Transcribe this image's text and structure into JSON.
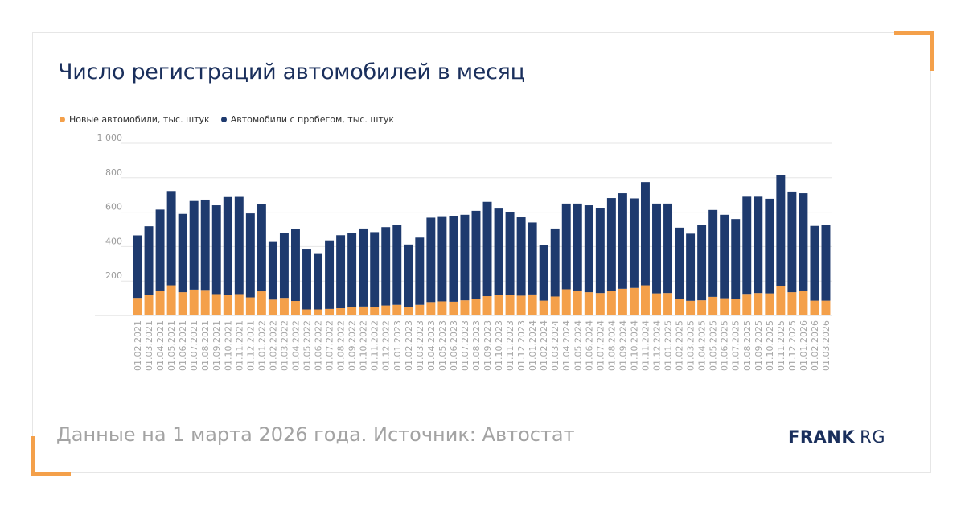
{
  "colors": {
    "new_cars": "#f4a04a",
    "used_cars": "#1e3a6e",
    "accent": "#f4a04a",
    "brand": "#1a2f5c"
  },
  "page": {
    "title": "Число регистраций автомобилей в месяц",
    "footer_note": "Данные на 1 марта 2026 года. Источник: Автостат",
    "brand_bold": "FRANK",
    "brand_light": "RG"
  },
  "chart_data": {
    "type": "bar",
    "stacked": true,
    "title": "Число регистраций автомобилей в месяц",
    "xlabel": "",
    "ylabel": "",
    "ylim": [
      0,
      1000
    ],
    "yticks": [
      200,
      400,
      600,
      800,
      1000
    ],
    "ytick_labels": [
      "200",
      "400",
      "600",
      "800",
      "1 000"
    ],
    "grid": true,
    "legend_position": "top-left",
    "categories": [
      "01.02.2021",
      "01.03.2021",
      "01.04.2021",
      "01.05.2021",
      "01.06.2021",
      "01.07.2021",
      "01.08.2021",
      "01.09.2021",
      "01.10.2021",
      "01.11.2021",
      "01.12.2021",
      "01.01.2022",
      "01.02.2022",
      "01.03.2022",
      "01.04.2022",
      "01.05.2022",
      "01.06.2022",
      "01.07.2022",
      "01.08.2022",
      "01.09.2022",
      "01.10.2022",
      "01.11.2022",
      "01.12.2022",
      "01.01.2023",
      "01.02.2023",
      "01.03.2023",
      "01.04.2023",
      "01.05.2023",
      "01.06.2023",
      "01.07.2023",
      "01.08.2023",
      "01.09.2023",
      "01.10.2023",
      "01.11.2023",
      "01.12.2023",
      "01.01.2024",
      "01.02.2024",
      "01.03.2024",
      "01.04.2024",
      "01.05.2024",
      "01.06.2024",
      "01.07.2024",
      "01.08.2024",
      "01.09.2024",
      "01.10.2024",
      "01.11.2024",
      "01.12.2024",
      "01.01.2025",
      "01.02.2025",
      "01.03.2025",
      "01.04.2025",
      "01.05.2025",
      "01.06.2025",
      "01.07.2025",
      "01.08.2025",
      "01.09.2025",
      "01.10.2025",
      "01.11.2025",
      "01.12.2025",
      "01.01.2026",
      "01.02.2026",
      "01.03.2026"
    ],
    "series": [
      {
        "name": "Новые автомобили, тыс. штук",
        "color": "#f4a04a",
        "values": [
          102,
          118,
          145,
          175,
          135,
          150,
          148,
          124,
          118,
          124,
          105,
          140,
          92,
          102,
          84,
          35,
          35,
          38,
          42,
          48,
          52,
          50,
          58,
          62,
          50,
          62,
          78,
          82,
          80,
          88,
          98,
          112,
          118,
          118,
          115,
          122,
          86,
          110,
          152,
          145,
          135,
          130,
          142,
          155,
          160,
          175,
          128,
          130,
          95,
          85,
          88,
          108,
          100,
          95,
          125,
          130,
          128,
          172,
          135,
          145,
          86,
          86
        ]
      },
      {
        "name": "Автомобили с пробегом, тыс. штук",
        "color": "#1e3a6e",
        "values": [
          363,
          400,
          470,
          548,
          455,
          515,
          525,
          516,
          570,
          565,
          488,
          507,
          335,
          375,
          420,
          348,
          322,
          398,
          424,
          432,
          453,
          434,
          455,
          466,
          362,
          390,
          490,
          490,
          495,
          497,
          510,
          548,
          503,
          483,
          455,
          418,
          325,
          395,
          498,
          505,
          505,
          495,
          540,
          555,
          520,
          600,
          522,
          520,
          415,
          390,
          440,
          505,
          485,
          465,
          565,
          560,
          550,
          645,
          585,
          565,
          434,
          438
        ]
      }
    ]
  }
}
